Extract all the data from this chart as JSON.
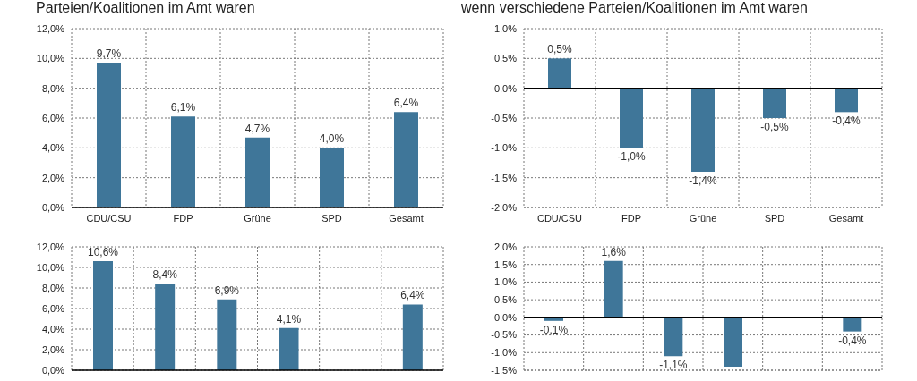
{
  "chart_data": [
    {
      "type": "bar",
      "title": "Parteien/Koalitionen im Amt waren",
      "categories": [
        "CDU/CSU",
        "FDP",
        "Grüne",
        "SPD",
        "Gesamt"
      ],
      "values": [
        9.7,
        6.1,
        4.7,
        4.0,
        6.4
      ],
      "color": "#3f7699",
      "value_labels": [
        "9,7%",
        "6,1%",
        "4,7%",
        "4,0%",
        "6,4%"
      ],
      "ylim": [
        0,
        12
      ],
      "yticks": [
        {
          "value": 0,
          "label": "0,0%"
        },
        {
          "value": 2,
          "label": "2,0%"
        },
        {
          "value": 4,
          "label": "4,0%"
        },
        {
          "value": 6,
          "label": "6,0%"
        },
        {
          "value": 8,
          "label": "8,0%"
        },
        {
          "value": 10,
          "label": "10,0%"
        },
        {
          "value": 12,
          "label": "12,0%"
        }
      ],
      "grid": true
    },
    {
      "type": "bar",
      "title": "wenn verschiedene Parteien/Koalitionen im Amt waren",
      "categories": [
        "CDU/CSU",
        "FDP",
        "Grüne",
        "SPD",
        "Gesamt"
      ],
      "values": [
        0.5,
        -1.0,
        -1.4,
        -0.5,
        -0.4
      ],
      "color": "#3f7699",
      "value_labels": [
        "0,5%",
        "-1,0%",
        "-1,4%",
        "-0,5%",
        "-0,4%"
      ],
      "ylim": [
        -2,
        1
      ],
      "yticks": [
        {
          "value": -2,
          "label": "-2,0%"
        },
        {
          "value": -1.5,
          "label": "-1,5%"
        },
        {
          "value": -1,
          "label": "-1,0%"
        },
        {
          "value": -0.5,
          "label": "-0,5%"
        },
        {
          "value": 0,
          "label": "0,0%"
        },
        {
          "value": 0.5,
          "label": "0,5%"
        },
        {
          "value": 1,
          "label": "1,0%"
        }
      ],
      "grid": true,
      "ref_lines": [
        {
          "axis": "y",
          "value": 0,
          "color": "#000000"
        }
      ]
    },
    {
      "type": "bar",
      "categories": [
        null,
        null,
        null,
        null,
        null,
        null
      ],
      "values": [
        10.6,
        8.4,
        6.9,
        4.1,
        null,
        6.4
      ],
      "color": "#3f7699",
      "value_labels": [
        "10,6%",
        "8,4%",
        "6,9%",
        "4,1%",
        null,
        "6,4%"
      ],
      "ylim": [
        0,
        12
      ],
      "yticks": [
        {
          "value": 0,
          "label": "0,0%"
        },
        {
          "value": 2,
          "label": "2,0%"
        },
        {
          "value": 4,
          "label": "4,0%"
        },
        {
          "value": 6,
          "label": "6,0%"
        },
        {
          "value": 8,
          "label": "8,0%"
        },
        {
          "value": 10,
          "label": "10,0%"
        },
        {
          "value": 12,
          "label": "12,0%"
        }
      ],
      "grid": true
    },
    {
      "type": "bar",
      "categories": [
        null,
        null,
        null,
        null,
        null,
        null
      ],
      "values": [
        -0.1,
        1.6,
        -1.1,
        -1.4,
        null,
        -0.4
      ],
      "color": "#3f7699",
      "value_labels": [
        "-0,1%",
        "1,6%",
        "-1,1%",
        null,
        null,
        "-0,4%"
      ],
      "ylim": [
        -1.5,
        2
      ],
      "yticks": [
        {
          "value": -1.5,
          "label": "-1,5%"
        },
        {
          "value": -1,
          "label": "-1,0%"
        },
        {
          "value": -0.5,
          "label": "-0,5%"
        },
        {
          "value": 0,
          "label": "0,0%"
        },
        {
          "value": 0.5,
          "label": "0,5%"
        },
        {
          "value": 1,
          "label": "1,0%"
        },
        {
          "value": 1.5,
          "label": "1,5%"
        },
        {
          "value": 2,
          "label": "2,0%"
        }
      ],
      "grid": true,
      "ref_lines": [
        {
          "axis": "y",
          "value": 0,
          "color": "#000000"
        }
      ]
    }
  ]
}
